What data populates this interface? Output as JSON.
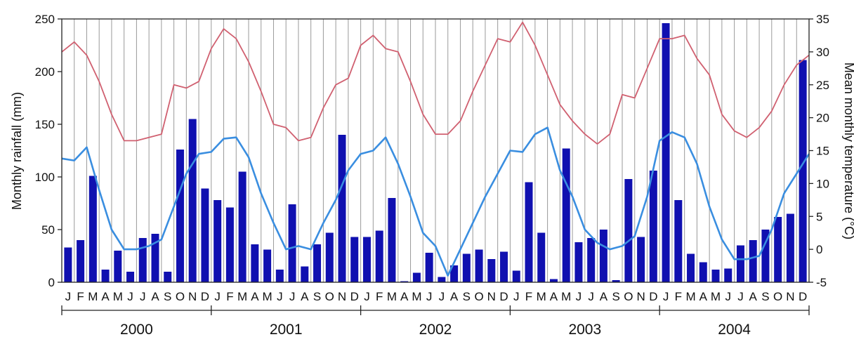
{
  "chart_data": {
    "type": "bar",
    "title": "",
    "ylabel_left": "Monthly rainfall (mm)",
    "ylabel_right": "Mean monthly temperature (°C)",
    "ylim_left": [
      0,
      250
    ],
    "ylim_right": [
      -5,
      35
    ],
    "yticks_left": [
      "0",
      "50",
      "100",
      "150",
      "200",
      "250"
    ],
    "yticks_right": [
      "-5",
      "0",
      "5",
      "10",
      "15",
      "20",
      "25",
      "30",
      "35"
    ],
    "grid": "vertical",
    "month_labels": [
      "J",
      "F",
      "M",
      "A",
      "M",
      "J",
      "J",
      "A",
      "S",
      "O",
      "N",
      "D",
      "J",
      "F",
      "M",
      "A",
      "M",
      "J",
      "J",
      "A",
      "S",
      "O",
      "N",
      "D",
      "J",
      "F",
      "M",
      "A",
      "M",
      "J",
      "J",
      "A",
      "S",
      "O",
      "N",
      "D",
      "J",
      "F",
      "M",
      "A",
      "M",
      "J",
      "J",
      "A",
      "S",
      "O",
      "N",
      "D",
      "J",
      "F",
      "M",
      "A",
      "M",
      "J",
      "J",
      "A",
      "S",
      "O",
      "N",
      "D"
    ],
    "years": [
      "2000",
      "2001",
      "2002",
      "2003",
      "2004"
    ],
    "colors": {
      "bars": "#1010b0",
      "max_temp": "#d06070",
      "min_temp": "#3a8ee0",
      "grid": "#9a9a9a"
    },
    "series": [
      {
        "type": "bar",
        "axis": "left",
        "values": [
          33,
          40,
          101,
          12,
          30,
          10,
          42,
          46,
          10,
          126,
          155,
          89,
          78,
          71,
          105,
          36,
          31,
          12,
          74,
          15,
          36,
          47,
          140,
          43,
          43,
          49,
          80,
          1,
          9,
          28,
          5,
          16,
          27,
          31,
          22,
          29,
          11,
          95,
          47,
          3,
          127,
          38,
          42,
          50,
          2,
          98,
          43,
          106,
          246,
          78,
          27,
          19,
          12,
          13,
          35,
          40,
          50,
          62,
          65,
          211
        ]
      },
      {
        "type": "line",
        "axis": "right",
        "values": [
          30,
          31.5,
          29.5,
          25.5,
          20.5,
          16.5,
          16.5,
          17,
          17.5,
          25,
          24.5,
          25.5,
          30.5,
          33.5,
          32,
          28.5,
          24,
          19,
          18.5,
          16.5,
          17,
          21.5,
          25,
          26,
          31,
          32.5,
          30.5,
          30,
          25.5,
          20.5,
          17.5,
          17.5,
          19.5,
          24,
          28,
          32,
          31.5,
          34.5,
          31,
          26.5,
          22,
          19.5,
          17.5,
          16,
          17.5,
          23.5,
          23,
          27.5,
          32,
          32,
          32.5,
          29,
          26.5,
          20.5,
          18,
          17,
          18.5,
          21,
          25,
          28,
          29.5
        ]
      },
      {
        "type": "line",
        "axis": "right",
        "values": [
          13.8,
          13.5,
          15.5,
          9,
          3,
          0,
          0,
          0.5,
          1.5,
          6.5,
          11.5,
          14.5,
          14.8,
          16.8,
          17,
          14,
          8.5,
          4,
          0,
          0.5,
          0,
          4,
          7.5,
          12,
          14.5,
          15,
          17,
          13,
          8,
          2.5,
          0.5,
          -4,
          0,
          4,
          8,
          11.5,
          15,
          14.8,
          17.5,
          18.5,
          12,
          8,
          3,
          1,
          0,
          0.5,
          2,
          8,
          16.5,
          17.8,
          17,
          13,
          6.5,
          1.5,
          -1.5,
          -1.5,
          -1,
          3,
          8.5,
          11.5,
          14.5
        ]
      }
    ]
  }
}
